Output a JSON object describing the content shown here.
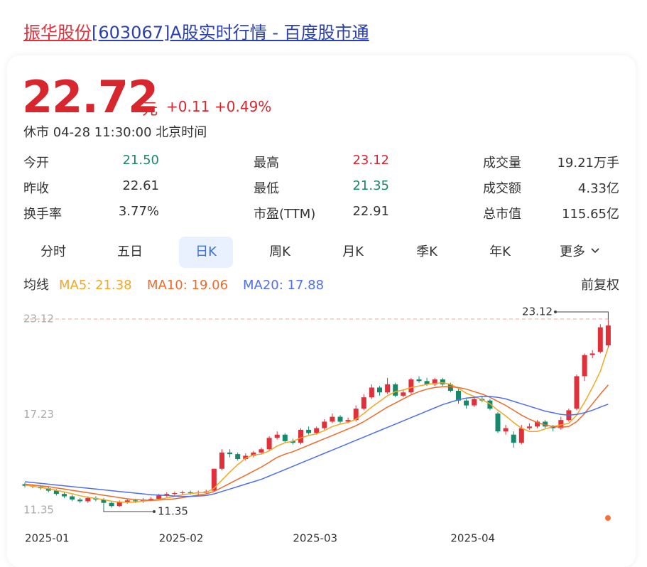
{
  "header": {
    "title_red": "振华股份",
    "title_blue": "[603067]A股实时行情 - 百度股市通"
  },
  "quote": {
    "price": "22.72",
    "unit": "元",
    "change": "+0.11",
    "change_pct": "+0.49%",
    "status": "休市 04-28 11:30:00 北京时间"
  },
  "stats": [
    [
      {
        "label": "今开",
        "value": "21.50",
        "color": "#17896b"
      },
      {
        "label": "最高",
        "value": "23.12",
        "color": "#d8262f"
      },
      {
        "label": "成交量",
        "value": "19.21万手",
        "color": "#333333"
      }
    ],
    [
      {
        "label": "昨收",
        "value": "22.61",
        "color": "#333333"
      },
      {
        "label": "最低",
        "value": "21.35",
        "color": "#17896b"
      },
      {
        "label": "成交额",
        "value": "4.33亿",
        "color": "#333333"
      }
    ],
    [
      {
        "label": "换手率",
        "value": "3.77%",
        "color": "#333333"
      },
      {
        "label": "市盈(TTM)",
        "value": "22.91",
        "color": "#333333"
      },
      {
        "label": "总市值",
        "value": "115.65亿",
        "color": "#333333"
      }
    ]
  ],
  "tabs": [
    "分时",
    "五日",
    "日K",
    "周K",
    "月K",
    "季K",
    "年K",
    "更多"
  ],
  "active_tab": "日K",
  "chart_data": {
    "type": "candlestick",
    "ma_label": "均线",
    "adjust_label": "前复权",
    "categories": [
      "2025-01",
      null,
      null,
      null,
      null,
      null,
      null,
      null,
      null,
      null,
      null,
      null,
      null,
      null,
      null,
      null,
      null,
      "2025-02",
      null,
      null,
      null,
      null,
      null,
      null,
      null,
      null,
      null,
      null,
      null,
      null,
      null,
      null,
      null,
      null,
      "2025-03",
      null,
      null,
      null,
      null,
      null,
      null,
      null,
      null,
      null,
      null,
      null,
      null,
      null,
      null,
      null,
      null,
      null,
      null,
      null,
      "2025-04",
      null,
      null,
      null,
      null,
      null,
      null,
      null,
      null,
      null,
      null,
      null,
      null,
      null,
      null,
      null,
      null,
      null,
      null,
      null,
      null
    ],
    "ylim": [
      11.35,
      23.12
    ],
    "yticks": [
      11.35,
      17.23,
      23.12
    ],
    "high_label": 23.12,
    "low_label": 11.35,
    "up_color": "#e0303a",
    "down_color": "#17896b",
    "open": [
      12.95,
      12.85,
      12.8,
      12.7,
      12.55,
      12.35,
      12.2,
      12.0,
      11.9,
      12.1,
      12.0,
      11.8,
      11.6,
      11.85,
      11.95,
      11.9,
      12.0,
      12.05,
      12.25,
      12.35,
      12.4,
      12.45,
      12.4,
      12.45,
      12.55,
      13.9,
      14.9,
      14.8,
      14.5,
      14.7,
      14.9,
      15.1,
      15.8,
      16.0,
      15.6,
      15.5,
      16.3,
      16.1,
      16.4,
      16.8,
      17.1,
      16.8,
      16.9,
      17.6,
      18.3,
      18.9,
      18.6,
      19.1,
      18.4,
      18.6,
      19.4,
      19.3,
      19.1,
      19.4,
      19.1,
      18.7,
      18.1,
      17.8,
      18.2,
      18.1,
      17.3,
      16.2,
      16.0,
      15.5,
      16.4,
      16.5,
      16.8,
      16.5,
      16.4,
      16.9,
      17.6,
      19.6,
      20.9,
      21.1,
      21.5
    ],
    "high": [
      13.05,
      12.95,
      12.9,
      12.8,
      12.65,
      12.45,
      12.3,
      12.1,
      12.2,
      12.2,
      12.1,
      11.9,
      11.95,
      12.05,
      12.05,
      12.1,
      12.15,
      12.35,
      12.45,
      12.5,
      12.55,
      12.55,
      12.55,
      12.6,
      13.9,
      15.1,
      15.1,
      14.9,
      14.85,
      15.0,
      15.2,
      15.9,
      16.2,
      16.1,
      15.75,
      16.4,
      16.5,
      16.5,
      16.95,
      17.3,
      17.2,
      17.05,
      17.8,
      18.5,
      19.1,
      19.0,
      19.5,
      19.2,
      18.8,
      19.5,
      19.6,
      19.5,
      19.5,
      19.5,
      19.2,
      18.8,
      18.2,
      18.3,
      18.4,
      18.2,
      17.4,
      16.6,
      16.2,
      16.6,
      16.7,
      16.9,
      16.9,
      16.6,
      17.1,
      17.6,
      19.7,
      21.0,
      21.2,
      22.8,
      23.12
    ],
    "low": [
      12.75,
      12.7,
      12.6,
      12.45,
      12.25,
      12.1,
      11.9,
      11.8,
      11.8,
      11.9,
      11.35,
      11.5,
      11.55,
      11.75,
      11.8,
      11.8,
      11.9,
      11.95,
      12.15,
      12.25,
      12.3,
      12.3,
      12.3,
      12.35,
      12.5,
      13.8,
      14.6,
      14.4,
      14.4,
      14.6,
      14.8,
      15.0,
      15.7,
      15.5,
      15.4,
      15.4,
      16.0,
      16.0,
      16.3,
      16.7,
      16.7,
      16.7,
      16.8,
      17.5,
      18.2,
      18.4,
      18.5,
      18.3,
      18.3,
      18.5,
      19.2,
      19.0,
      19.0,
      19.0,
      18.6,
      17.9,
      17.6,
      17.7,
      18.0,
      17.5,
      16.1,
      16.0,
      15.2,
      15.4,
      16.3,
      16.4,
      16.4,
      16.2,
      16.3,
      16.8,
      17.5,
      19.3,
      20.7,
      21.0,
      21.35
    ],
    "close": [
      12.85,
      12.8,
      12.7,
      12.55,
      12.35,
      12.2,
      12.0,
      11.9,
      12.1,
      12.0,
      11.8,
      11.6,
      11.85,
      11.95,
      11.9,
      12.0,
      12.05,
      12.25,
      12.35,
      12.4,
      12.45,
      12.4,
      12.45,
      12.5,
      13.9,
      14.9,
      14.8,
      14.5,
      14.7,
      14.9,
      15.1,
      15.8,
      16.0,
      15.6,
      15.5,
      16.3,
      16.1,
      16.4,
      16.8,
      17.1,
      16.8,
      16.9,
      17.6,
      18.3,
      18.9,
      18.6,
      19.1,
      18.4,
      18.6,
      19.4,
      19.3,
      19.1,
      19.4,
      19.1,
      18.7,
      18.1,
      17.8,
      18.2,
      18.1,
      17.6,
      16.2,
      16.4,
      15.5,
      16.4,
      16.5,
      16.8,
      16.5,
      16.4,
      16.9,
      17.5,
      19.6,
      20.9,
      21.0,
      22.61,
      22.72
    ],
    "series": [
      {
        "name": "MA5: 21.38",
        "color": "#f5a623",
        "values": [
          12.9,
          12.82,
          12.75,
          12.67,
          12.57,
          12.47,
          12.36,
          12.24,
          12.14,
          12.07,
          12.0,
          11.9,
          11.85,
          11.83,
          11.85,
          11.9,
          11.95,
          12.02,
          12.1,
          12.2,
          12.3,
          12.37,
          12.42,
          12.44,
          12.7,
          13.2,
          13.7,
          14.15,
          14.55,
          14.75,
          14.8,
          15.0,
          15.3,
          15.5,
          15.6,
          15.8,
          15.95,
          16.05,
          16.25,
          16.5,
          16.65,
          16.75,
          16.95,
          17.3,
          17.7,
          18.05,
          18.4,
          18.65,
          18.75,
          18.9,
          19.0,
          19.1,
          19.15,
          19.2,
          19.1,
          18.85,
          18.55,
          18.35,
          18.15,
          17.9,
          17.5,
          17.15,
          16.75,
          16.4,
          16.2,
          16.2,
          16.35,
          16.5,
          16.6,
          16.7,
          17.2,
          18.0,
          18.9,
          19.9,
          21.38
        ]
      },
      {
        "name": "MA10: 19.06",
        "color": "#ef6a2a",
        "values": [
          12.95,
          12.9,
          12.85,
          12.8,
          12.72,
          12.65,
          12.57,
          12.5,
          12.42,
          12.35,
          12.27,
          12.2,
          12.12,
          12.05,
          12.0,
          11.97,
          11.95,
          11.97,
          12.0,
          12.05,
          12.12,
          12.2,
          12.28,
          12.35,
          12.5,
          12.75,
          13.0,
          13.25,
          13.5,
          13.75,
          14.0,
          14.3,
          14.6,
          14.8,
          14.95,
          15.15,
          15.35,
          15.55,
          15.75,
          15.95,
          16.15,
          16.35,
          16.55,
          16.8,
          17.1,
          17.4,
          17.7,
          17.95,
          18.2,
          18.45,
          18.65,
          18.8,
          18.9,
          18.95,
          18.95,
          18.9,
          18.8,
          18.65,
          18.5,
          18.3,
          18.05,
          17.8,
          17.5,
          17.2,
          16.95,
          16.75,
          16.6,
          16.5,
          16.45,
          16.5,
          16.8,
          17.3,
          17.9,
          18.5,
          19.06
        ]
      },
      {
        "name": "MA20: 17.88",
        "color": "#4f6ef2",
        "values": [
          13.1,
          13.05,
          13.0,
          12.95,
          12.9,
          12.85,
          12.8,
          12.75,
          12.7,
          12.65,
          12.6,
          12.55,
          12.5,
          12.45,
          12.4,
          12.35,
          12.3,
          12.28,
          12.25,
          12.22,
          12.2,
          12.2,
          12.22,
          12.25,
          12.35,
          12.5,
          12.65,
          12.8,
          12.95,
          13.1,
          13.25,
          13.45,
          13.65,
          13.85,
          14.05,
          14.25,
          14.45,
          14.65,
          14.85,
          15.05,
          15.25,
          15.45,
          15.65,
          15.85,
          16.05,
          16.25,
          16.45,
          16.65,
          16.85,
          17.05,
          17.25,
          17.45,
          17.65,
          17.85,
          18.0,
          18.15,
          18.25,
          18.3,
          18.35,
          18.35,
          18.3,
          18.2,
          18.05,
          17.9,
          17.75,
          17.6,
          17.45,
          17.35,
          17.25,
          17.2,
          17.25,
          17.35,
          17.5,
          17.7,
          17.88
        ]
      }
    ]
  }
}
